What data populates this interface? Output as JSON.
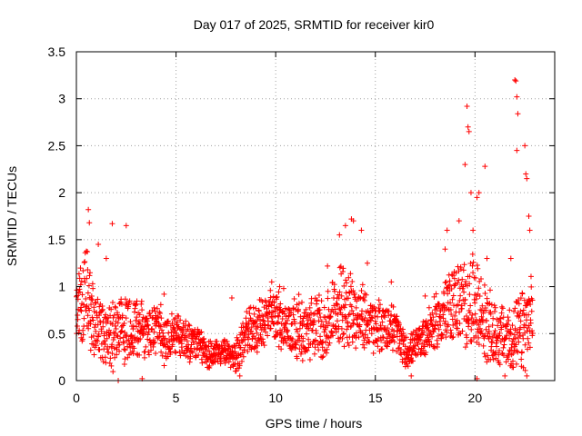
{
  "chart_data": {
    "type": "scatter",
    "title": "Day 017 of 2025, SRMTID for receiver kir0",
    "xlabel": "GPS time / hours",
    "ylabel": "SRMTID / TECUs",
    "xlim": [
      0,
      24
    ],
    "ylim": [
      0,
      3.5
    ],
    "x_ticks": [
      "0",
      "5",
      "10",
      "15",
      "20"
    ],
    "y_ticks": [
      "0",
      "0.5",
      "1",
      "1.5",
      "2",
      "2.5",
      "3",
      "3.5"
    ],
    "grid": true,
    "marker": "+",
    "series": [
      {
        "name": "SRMTID",
        "color": "#ff0000",
        "envelope": {
          "x": [
            0,
            0.5,
            1,
            1.5,
            2,
            2.5,
            3,
            3.5,
            4,
            4.5,
            5,
            5.5,
            6,
            6.5,
            7,
            7.5,
            8,
            8.5,
            9,
            9.5,
            10,
            10.5,
            11,
            11.5,
            12,
            12.5,
            13,
            13.5,
            14,
            14.5,
            15,
            15.5,
            16,
            16.5,
            17,
            17.5,
            18,
            18.5,
            19,
            19.5,
            20,
            20.5,
            21,
            21.5,
            22,
            22.5,
            22.9
          ],
          "center": [
            0.75,
            0.9,
            0.55,
            0.5,
            0.5,
            0.55,
            0.6,
            0.5,
            0.55,
            0.45,
            0.5,
            0.45,
            0.4,
            0.3,
            0.28,
            0.3,
            0.25,
            0.5,
            0.55,
            0.65,
            0.7,
            0.55,
            0.6,
            0.5,
            0.6,
            0.55,
            0.75,
            0.85,
            0.7,
            0.65,
            0.55,
            0.6,
            0.55,
            0.3,
            0.35,
            0.5,
            0.6,
            0.75,
            0.85,
            0.8,
            0.85,
            0.6,
            0.5,
            0.45,
            0.45,
            0.55,
            0.7
          ],
          "spread": [
            0.3,
            0.45,
            0.3,
            0.3,
            0.35,
            0.3,
            0.3,
            0.25,
            0.25,
            0.25,
            0.2,
            0.2,
            0.18,
            0.15,
            0.12,
            0.12,
            0.15,
            0.2,
            0.22,
            0.25,
            0.25,
            0.25,
            0.3,
            0.25,
            0.3,
            0.3,
            0.35,
            0.4,
            0.3,
            0.3,
            0.25,
            0.25,
            0.22,
            0.15,
            0.15,
            0.2,
            0.25,
            0.3,
            0.35,
            0.4,
            0.45,
            0.35,
            0.3,
            0.3,
            0.3,
            0.4,
            0.35
          ]
        },
        "highlight_points": [
          [
            0.6,
            1.82
          ],
          [
            0.65,
            1.68
          ],
          [
            1.1,
            1.45
          ],
          [
            1.8,
            1.67
          ],
          [
            2.5,
            1.65
          ],
          [
            1.5,
            1.3
          ],
          [
            4.4,
            0.92
          ],
          [
            7.8,
            0.88
          ],
          [
            9.8,
            1.05
          ],
          [
            10.2,
            1.0
          ],
          [
            10.4,
            0.98
          ],
          [
            12.6,
            1.22
          ],
          [
            13.2,
            1.55
          ],
          [
            13.5,
            1.65
          ],
          [
            13.8,
            1.72
          ],
          [
            13.9,
            1.7
          ],
          [
            14.3,
            1.6
          ],
          [
            14.6,
            1.25
          ],
          [
            15.8,
            1.05
          ],
          [
            16.8,
            0.05
          ],
          [
            17.5,
            0.9
          ],
          [
            18.5,
            1.4
          ],
          [
            18.6,
            1.6
          ],
          [
            19.2,
            1.7
          ],
          [
            19.5,
            2.3
          ],
          [
            19.6,
            2.92
          ],
          [
            19.65,
            2.7
          ],
          [
            19.7,
            2.65
          ],
          [
            19.8,
            2.0
          ],
          [
            19.9,
            1.6
          ],
          [
            20.1,
            1.95
          ],
          [
            20.2,
            2.0
          ],
          [
            20.5,
            2.28
          ],
          [
            20.6,
            1.3
          ],
          [
            21.5,
            0.05
          ],
          [
            21.8,
            1.3
          ],
          [
            22.0,
            3.2
          ],
          [
            22.05,
            3.19
          ],
          [
            22.1,
            3.02
          ],
          [
            22.15,
            2.84
          ],
          [
            22.1,
            2.45
          ],
          [
            22.5,
            2.5
          ],
          [
            22.55,
            2.2
          ],
          [
            22.6,
            2.15
          ],
          [
            22.7,
            1.75
          ],
          [
            22.75,
            1.6
          ],
          [
            22.6,
            0.05
          ],
          [
            2.1,
            0.0
          ],
          [
            3.3,
            0.02
          ],
          [
            8.2,
            0.05
          ],
          [
            20.1,
            0.02
          ]
        ]
      }
    ]
  }
}
